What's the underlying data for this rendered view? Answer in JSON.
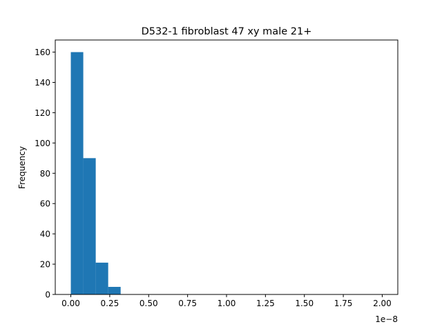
{
  "chart_data": {
    "type": "bar",
    "title": "D532-1 fibroblast 47 xy male 21+",
    "xlabel": "",
    "ylabel": "Frequency",
    "x_scale_label": "1e−8",
    "xlim": [
      -0.1,
      2.1
    ],
    "ylim": [
      0,
      168
    ],
    "bin_width": 0.08,
    "bins": [
      {
        "start": 0.0,
        "value": 160
      },
      {
        "start": 0.08,
        "value": 90
      },
      {
        "start": 0.16,
        "value": 21
      },
      {
        "start": 0.24,
        "value": 5
      }
    ],
    "x_ticks": [
      0,
      0.25,
      0.5,
      0.75,
      1.0,
      1.25,
      1.5,
      1.75,
      2.0
    ],
    "x_tick_labels": [
      "0.00",
      "0.25",
      "0.50",
      "0.75",
      "1.00",
      "1.25",
      "1.50",
      "1.75",
      "2.00"
    ],
    "y_ticks": [
      0,
      20,
      40,
      60,
      80,
      100,
      120,
      140,
      160
    ],
    "y_tick_labels": [
      "0",
      "20",
      "40",
      "60",
      "80",
      "100",
      "120",
      "140",
      "160"
    ],
    "grid": false,
    "bar_color": "#1f77b4"
  }
}
